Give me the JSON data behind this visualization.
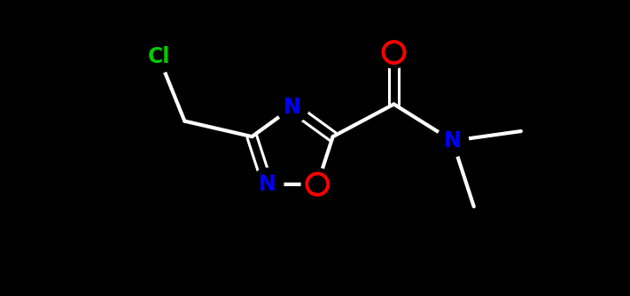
{
  "background_color": "#000000",
  "atom_colors": {
    "N": "#0000ff",
    "O": "#ff0000",
    "Cl": "#00cc00"
  },
  "bond_color": "#ffffff",
  "bond_width": 3.0,
  "figsize": [
    7.11,
    3.34
  ],
  "dpi": 100,
  "xlim": [
    0,
    7.11
  ],
  "ylim": [
    0,
    3.34
  ]
}
